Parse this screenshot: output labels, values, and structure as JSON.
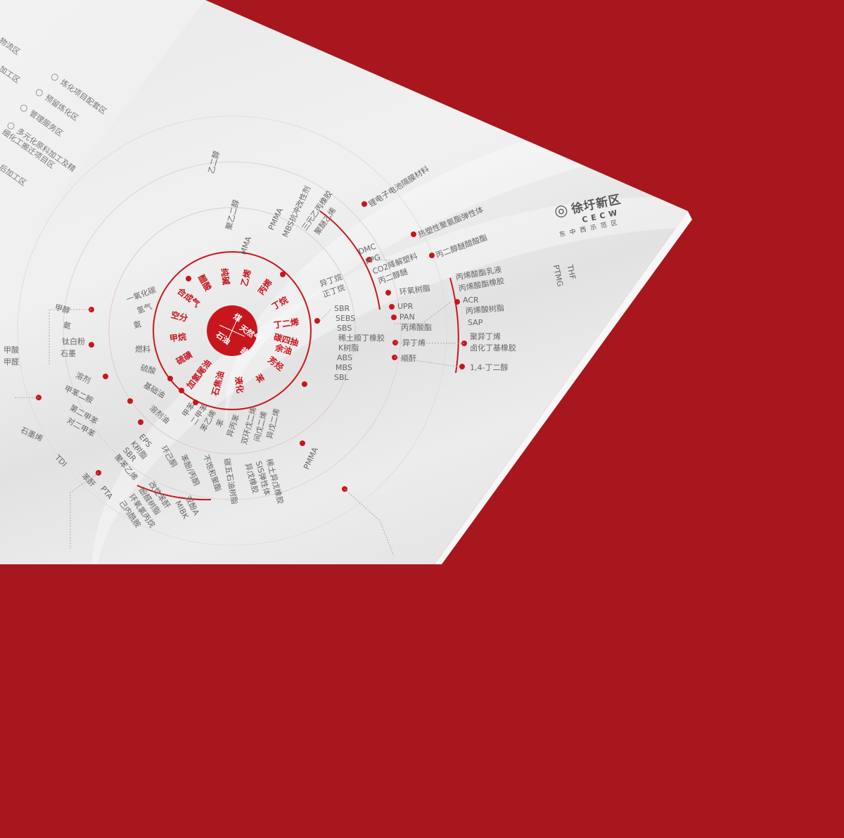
{
  "colors": {
    "background": "#a8171e",
    "accent": "#c8161d",
    "paper": "#eeeeee"
  },
  "left_page": {
    "partial_labels": [
      "物流区",
      "加工区",
      "后加工区"
    ],
    "legend": [
      "炼化项目配套区",
      "预留炼化区",
      "管理服务区",
      "多元化原料加工及精细化工搬迁项目区"
    ]
  },
  "logo": {
    "name": "徐圩新区",
    "latin": "CECW",
    "sub": "东中西示范区",
    "icon": "flame-crest-logo"
  },
  "side_text": [
    "PTMG",
    "THF"
  ],
  "center": [
    "煤",
    "天然气",
    "石油",
    "盐"
  ],
  "inner_ring": [
    "乙烯",
    "丙烯",
    "丁烷",
    "丁二烯",
    "碳四抽余油",
    "芳烃",
    "苯",
    "液化",
    "石焦油",
    "加氢尾油",
    "硫磺",
    "甲烷",
    "空分",
    "合成气",
    "醋酸",
    "纯碱"
  ],
  "middle_labels": {
    "c4": [
      "异丁烷",
      "正丁烷"
    ],
    "rubbers": [
      "SBR",
      "SEBS",
      "SBS",
      "稀土顺丁橡胶",
      "K树脂",
      "ABS",
      "MBS",
      "SBL"
    ],
    "propylene": [
      "DMC",
      "PPG",
      "CO2降解塑料",
      "丙二醇醚"
    ],
    "right_mid": [
      "环氧树脂",
      "UPR",
      "PAN",
      "丙烯酸酯",
      "异丁烯",
      "顺酐"
    ],
    "left_mid": [
      "一氧化碳",
      "氢气",
      "氨",
      "燃料",
      "硫酸",
      "基础油",
      "溶剂油"
    ],
    "aromatics": [
      "甲苯",
      "二甲苯",
      "苯乙烯",
      "苯",
      "异丙苯"
    ],
    "c5": [
      "双环戊二烯",
      "间戊二烯",
      "异戊二烯"
    ]
  },
  "outer_labels": {
    "top": [
      "乙二醇",
      "聚乙二醇",
      "MMA",
      "PMMA",
      "MBS抗冲改性剂",
      "三元乙丙橡胶",
      "聚醚乙烯"
    ],
    "right_top": [
      "锂电子电池隔膜材料",
      "热塑性聚氨酯弹性体",
      "丙二醇醚醋酸酯"
    ],
    "acrylic": [
      "丙烯酸酯乳液",
      "丙烯酸酯橡胶",
      "ACR",
      "丙烯酸树脂",
      "SAP"
    ],
    "butyl": [
      "聚异丁烯",
      "卤化丁基橡胶",
      "1,4-丁二醇"
    ],
    "left": [
      "甲醇",
      "氨",
      "钛白粉",
      "石墨",
      "甲酸",
      "甲醛",
      "溶剂",
      "甲苯二胺",
      "第二甲苯",
      "对二甲苯",
      "石墨烯",
      "TDI"
    ],
    "bottom": [
      "聚苯乙烯",
      "SBR",
      "K树脂",
      "EPS",
      "环己酮",
      "苯酚/丙酮",
      "不饱和聚酯",
      "碳五石油树脂",
      "异戊橡胶",
      "SIS弹性体",
      "稀土异戊橡胶",
      "PMMA"
    ],
    "outermost": [
      "苯酐",
      "PTA",
      "己内酰胺",
      "环氧氯丙烷",
      "酚醛树脂",
      "改性苯酐",
      "MIBK",
      "双酚A"
    ]
  }
}
